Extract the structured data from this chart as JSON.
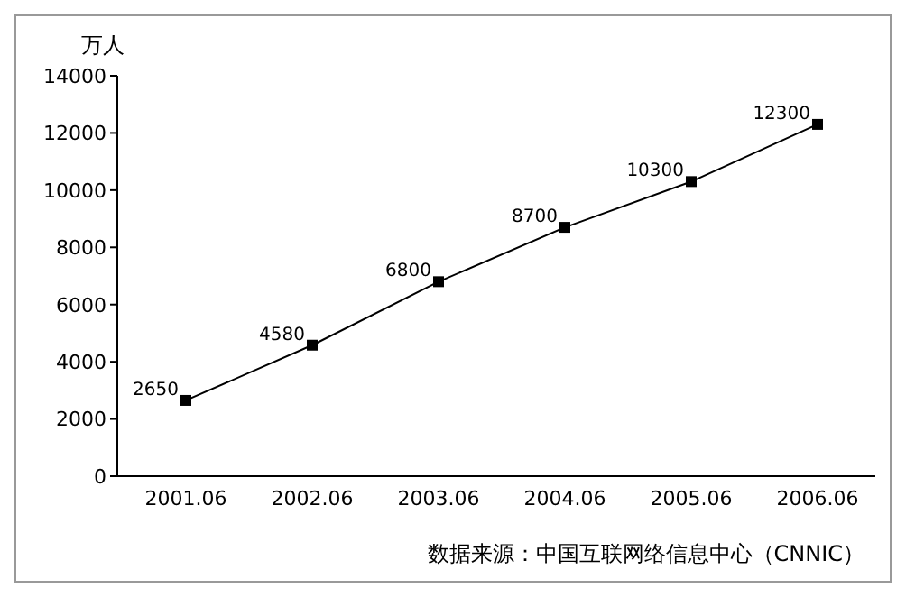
{
  "chart_data": {
    "type": "line",
    "ylabel": "万人",
    "categories": [
      "2001.06",
      "2002.06",
      "2003.06",
      "2004.06",
      "2005.06",
      "2006.06"
    ],
    "series": [
      {
        "color": "#000000",
        "values": [
          2650,
          4580,
          6800,
          8700,
          10300,
          12300
        ]
      }
    ],
    "ylim": [
      0,
      14000
    ],
    "yticks": [
      0,
      2000,
      4000,
      6000,
      8000,
      10000,
      12000,
      14000
    ],
    "marker": "square",
    "line_style": "solid",
    "grid": false,
    "legend": false,
    "data_labels": true,
    "annotations": [
      "数据来源：中国互联网络信息中心（CNNIC）"
    ]
  }
}
